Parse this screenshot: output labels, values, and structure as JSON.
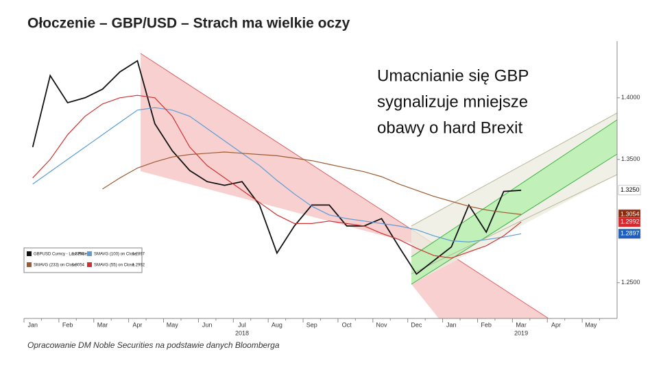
{
  "chart_data": {
    "type": "line",
    "title": "Ołoczenie – GBP/USD – Strach ma wielkie oczy",
    "annotation": [
      "Umacnianie się GBP",
      "sygnalizuje mniejsze",
      "obawy o hard Brexit"
    ],
    "source": "Opracowanie DM Noble Securities na podstawie danych Bloomberga",
    "categories": [
      "Jan",
      null,
      "Feb",
      null,
      "Mar",
      null,
      "Apr",
      null,
      "May",
      null,
      "Jun",
      null,
      "Jul",
      null,
      "Aug",
      null,
      "Sep",
      null,
      "Oct",
      null,
      "Nov",
      null,
      "Dec",
      null,
      "Jan",
      null,
      "Feb",
      null,
      "Mar",
      null,
      "Apr",
      null,
      "May",
      null
    ],
    "x_groups": [
      {
        "label": "2018",
        "at": 12
      },
      {
        "label": "2019",
        "at": 28
      }
    ],
    "ylim": [
      1.221,
      1.446
    ],
    "yticks": [
      {
        "value": 1.25,
        "label": "1.2500"
      },
      {
        "value": 1.35,
        "label": "1.3500"
      },
      {
        "value": 1.4,
        "label": "1.4000"
      }
    ],
    "series": [
      {
        "name": "GBPUSD Curncy - Last Price",
        "last_label": "1.3250",
        "color": "#111111",
        "tag_bg": "#ffffff",
        "tag_fg": "#000000",
        "values": [
          1.36,
          1.418,
          1.396,
          1.4,
          1.407,
          1.421,
          1.43,
          1.379,
          1.357,
          1.341,
          1.332,
          1.329,
          1.332,
          1.313,
          1.274,
          1.296,
          1.313,
          1.313,
          1.296,
          1.296,
          1.302,
          1.279,
          1.257,
          1.268,
          1.279,
          1.313,
          1.291,
          1.324,
          1.325,
          null,
          null,
          null,
          null,
          null
        ]
      },
      {
        "name": "SMAVG (100) on Close",
        "last_label": "1.2897",
        "color": "#5b9bd5",
        "tag_bg": "#1f5fbf",
        "tag_fg": "#ffffff",
        "values": [
          1.33,
          1.34,
          1.35,
          1.36,
          1.37,
          1.38,
          1.39,
          1.392,
          1.39,
          1.385,
          1.375,
          1.365,
          1.355,
          1.345,
          1.333,
          1.322,
          1.312,
          1.305,
          1.302,
          1.3,
          1.298,
          1.296,
          1.293,
          1.288,
          1.284,
          1.283,
          1.285,
          1.287,
          1.2897,
          null,
          null,
          null,
          null,
          null
        ]
      },
      {
        "name": "SMAVG (233) on Close",
        "last_label": "1.3054",
        "color": "#9c5a2e",
        "tag_bg": "#8b2a0f",
        "tag_fg": "#ffffff",
        "values": [
          null,
          null,
          null,
          null,
          1.326,
          1.335,
          1.343,
          1.348,
          1.352,
          1.354,
          1.355,
          1.356,
          1.355,
          1.354,
          1.353,
          1.351,
          1.349,
          1.346,
          1.343,
          1.34,
          1.336,
          1.33,
          1.325,
          1.32,
          1.316,
          1.312,
          1.309,
          1.307,
          1.3054,
          null,
          null,
          null,
          null,
          null
        ]
      },
      {
        "name": "SMAVG (55) on Close",
        "last_label": "1.2992",
        "color": "#d03030",
        "tag_bg": "#d8262c",
        "tag_fg": "#ffffff",
        "values": [
          1.335,
          1.35,
          1.37,
          1.385,
          1.395,
          1.4,
          1.402,
          1.4,
          1.385,
          1.36,
          1.345,
          1.335,
          1.325,
          1.315,
          1.305,
          1.298,
          1.298,
          1.3,
          1.298,
          1.296,
          1.29,
          1.285,
          1.278,
          1.272,
          1.27,
          1.275,
          1.28,
          1.288,
          1.2992,
          null,
          null,
          null,
          null,
          null
        ]
      }
    ]
  }
}
